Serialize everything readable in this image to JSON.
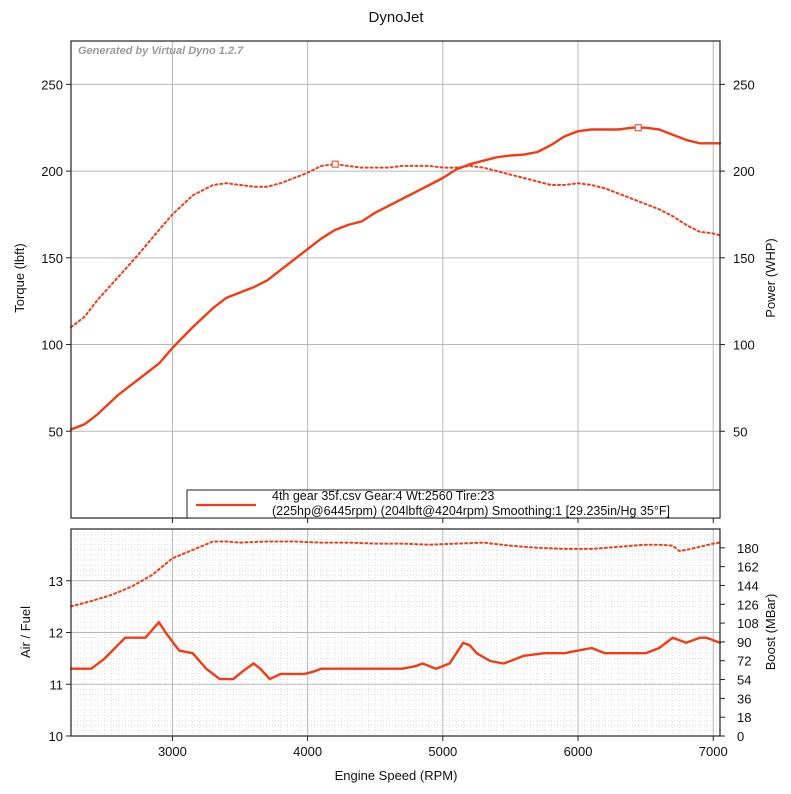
{
  "title": "DynoJet",
  "watermark": "Generated by Virtual Dyno 1.2.7",
  "legend": {
    "line1": "4th gear 35f.csv Gear:4 Wt:2560 Tire:23",
    "line2": "(225hp@6445rpm) (204lbft@4204rpm) Smoothing:1 [29.235in/Hg 35°F]"
  },
  "colors": {
    "series": "#f03c14",
    "grid_major": "#b8b8b8",
    "grid_minor": "#d9d9d9",
    "axis": "#222222"
  },
  "chart_data": [
    {
      "type": "line",
      "title": "DynoJet",
      "xlabel": "Engine Speed (RPM)",
      "ylabel": "Torque (lbft)",
      "y2label": "Power (WHP)",
      "xlim": [
        2250,
        7050
      ],
      "ylim": [
        0,
        275
      ],
      "y2lim": [
        0,
        275
      ],
      "xticks": [
        "3000",
        "4000",
        "5000",
        "6000",
        "7000"
      ],
      "yticks": [
        "50",
        "100",
        "150",
        "200",
        "250"
      ],
      "y2ticks": [
        "50",
        "100",
        "150",
        "200",
        "250"
      ],
      "series": [
        {
          "name": "Power (WHP)",
          "style": "solid",
          "x": [
            2250,
            2350,
            2450,
            2600,
            2750,
            2900,
            3000,
            3150,
            3300,
            3400,
            3500,
            3600,
            3700,
            3800,
            3900,
            4000,
            4100,
            4200,
            4300,
            4400,
            4500,
            4600,
            4700,
            4800,
            4900,
            5000,
            5100,
            5200,
            5300,
            5400,
            5500,
            5600,
            5700,
            5800,
            5900,
            6000,
            6100,
            6200,
            6300,
            6400,
            6445,
            6500,
            6600,
            6700,
            6800,
            6900,
            7000,
            7050
          ],
          "y": [
            51,
            54,
            60,
            71,
            80,
            89,
            98,
            110,
            121,
            127,
            130,
            133,
            137,
            143,
            149,
            155,
            161,
            166,
            169,
            171,
            176,
            180,
            184,
            188,
            192,
            196,
            201,
            204,
            206,
            208,
            209,
            209.5,
            211,
            215,
            220,
            223,
            224,
            224,
            224,
            225,
            225,
            225,
            224,
            221,
            218,
            216,
            216,
            216
          ]
        },
        {
          "name": "Torque (lbft)",
          "style": "dotted",
          "x": [
            2250,
            2350,
            2450,
            2600,
            2750,
            2900,
            3000,
            3150,
            3300,
            3400,
            3500,
            3600,
            3700,
            3800,
            3900,
            4000,
            4100,
            4204,
            4300,
            4400,
            4500,
            4600,
            4700,
            4800,
            4900,
            5000,
            5100,
            5200,
            5300,
            5400,
            5500,
            5600,
            5700,
            5800,
            5900,
            6000,
            6100,
            6200,
            6300,
            6400,
            6500,
            6600,
            6700,
            6800,
            6900,
            7000,
            7050
          ],
          "y": [
            110,
            116,
            126,
            139,
            152,
            166,
            175,
            186,
            192,
            193,
            192,
            191,
            191,
            193,
            196,
            199,
            203,
            204,
            203,
            202,
            202,
            202,
            203,
            203,
            203,
            202,
            202,
            203,
            202,
            200,
            198,
            196,
            194,
            192,
            192,
            193,
            192,
            190,
            187,
            184,
            181,
            178,
            174,
            169,
            165,
            164,
            163
          ]
        }
      ],
      "markers": [
        {
          "series": "Power (WHP)",
          "x": 6445,
          "y": 225
        },
        {
          "series": "Torque (lbft)",
          "x": 4204,
          "y": 204
        }
      ]
    },
    {
      "type": "line",
      "xlabel": "Engine Speed (RPM)",
      "ylabel": "Air / Fuel",
      "y2label": "Boost (MBar)",
      "xlim": [
        2250,
        7050
      ],
      "ylim": [
        10,
        14
      ],
      "y2lim": [
        0,
        198
      ],
      "xticks": [
        "3000",
        "4000",
        "5000",
        "6000",
        "7000"
      ],
      "yticks": [
        "10",
        "11",
        "12",
        "13"
      ],
      "y2ticks": [
        "0",
        "18",
        "36",
        "54",
        "72",
        "90",
        "108",
        "126",
        "144",
        "162",
        "180"
      ],
      "series": [
        {
          "name": "Air / Fuel",
          "style": "solid",
          "x": [
            2250,
            2400,
            2500,
            2650,
            2800,
            2900,
            2950,
            3050,
            3150,
            3250,
            3350,
            3450,
            3520,
            3600,
            3650,
            3720,
            3800,
            3900,
            3980,
            4050,
            4100,
            4200,
            4400,
            4600,
            4700,
            4800,
            4850,
            4900,
            4950,
            5000,
            5050,
            5150,
            5200,
            5250,
            5350,
            5450,
            5500,
            5600,
            5750,
            5900,
            6000,
            6100,
            6200,
            6300,
            6400,
            6500,
            6600,
            6700,
            6800,
            6900,
            6950,
            7050
          ],
          "y": [
            11.3,
            11.3,
            11.5,
            11.9,
            11.9,
            12.2,
            12.0,
            11.65,
            11.6,
            11.3,
            11.1,
            11.1,
            11.25,
            11.4,
            11.3,
            11.1,
            11.2,
            11.2,
            11.2,
            11.25,
            11.3,
            11.3,
            11.3,
            11.3,
            11.3,
            11.35,
            11.4,
            11.35,
            11.3,
            11.35,
            11.4,
            11.8,
            11.75,
            11.6,
            11.45,
            11.4,
            11.45,
            11.55,
            11.6,
            11.6,
            11.65,
            11.7,
            11.6,
            11.6,
            11.6,
            11.6,
            11.7,
            11.9,
            11.8,
            11.9,
            11.9,
            11.8
          ]
        },
        {
          "name": "Boost (MBar)",
          "style": "dotted",
          "x": [
            2250,
            2400,
            2550,
            2700,
            2850,
            3000,
            3150,
            3300,
            3400,
            3500,
            3700,
            3900,
            4100,
            4300,
            4500,
            4700,
            4900,
            5100,
            5300,
            5500,
            5700,
            5900,
            6100,
            6300,
            6500,
            6600,
            6700,
            6750,
            6800,
            6900,
            7000,
            7050
          ],
          "y": [
            124,
            129,
            135,
            143,
            154,
            170,
            178,
            186,
            186,
            185,
            186,
            186,
            185,
            185,
            184,
            184,
            183,
            184,
            185,
            182,
            180,
            179,
            179,
            181,
            183,
            183,
            182,
            177,
            178,
            181,
            184,
            185
          ]
        }
      ]
    }
  ]
}
